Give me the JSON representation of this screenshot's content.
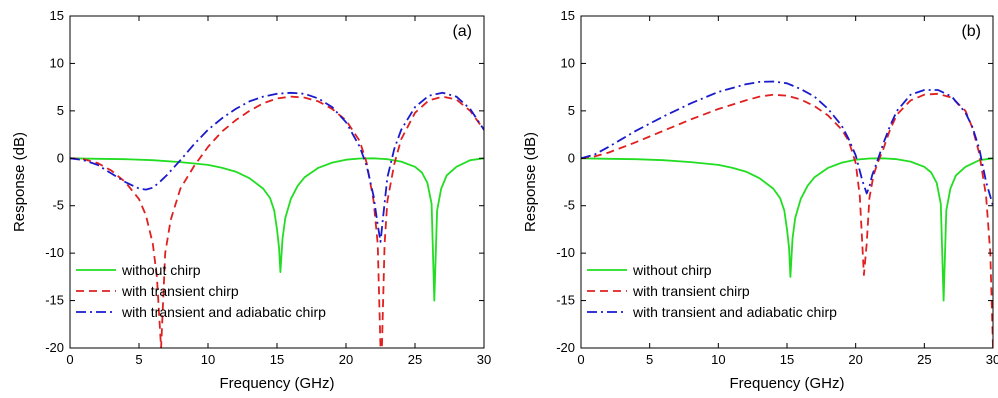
{
  "chart_data": [
    {
      "type": "line",
      "panel_label": "(a)",
      "xlabel": "Frequency (GHz)",
      "ylabel": "Response (dB)",
      "xlim": [
        0,
        30
      ],
      "ylim": [
        -20,
        15
      ],
      "xticks": [
        0,
        5,
        10,
        15,
        20,
        25,
        30
      ],
      "yticks": [
        -20,
        -15,
        -10,
        -5,
        0,
        5,
        10,
        15
      ],
      "grid": false,
      "legend_position": "bottom-left",
      "series": [
        {
          "name": "without chirp",
          "color": "#22dd22",
          "dash": "solid",
          "x": [
            0,
            2,
            4,
            6,
            8,
            10,
            11,
            12,
            13,
            14,
            14.5,
            14.8,
            15.0,
            15.15,
            15.25,
            15.4,
            15.6,
            16,
            16.5,
            17,
            18,
            19,
            20,
            21,
            22,
            23,
            24,
            25,
            25.5,
            25.9,
            26.2,
            26.4,
            26.6,
            26.9,
            27.3,
            28,
            29,
            30
          ],
          "y": [
            0,
            -0.05,
            -0.1,
            -0.2,
            -0.4,
            -0.7,
            -1.0,
            -1.4,
            -2.1,
            -3.2,
            -4.2,
            -5.5,
            -7.5,
            -9.5,
            -12,
            -8.5,
            -6.3,
            -4.3,
            -2.9,
            -2.0,
            -1.0,
            -0.45,
            -0.15,
            -0.02,
            0,
            -0.1,
            -0.35,
            -0.9,
            -1.5,
            -2.6,
            -4.8,
            -15,
            -5.5,
            -3.2,
            -1.8,
            -0.9,
            -0.2,
            0
          ]
        },
        {
          "name": "with transient chirp",
          "color": "#e02020",
          "dash": "dashed",
          "x": [
            0,
            1,
            2,
            3,
            4,
            5,
            5.5,
            6.0,
            6.3,
            6.6,
            6.9,
            7.3,
            8,
            9,
            10,
            11,
            12,
            13,
            14,
            15,
            16,
            17,
            18,
            19,
            20,
            21,
            21.5,
            22.0,
            22.3,
            22.5,
            22.6,
            22.8,
            23,
            23.5,
            24,
            25,
            26,
            27,
            28,
            29,
            29.5,
            30
          ],
          "y": [
            0,
            -0.1,
            -0.5,
            -1.3,
            -2.5,
            -4.3,
            -6.0,
            -9.0,
            -12.5,
            -20,
            -10,
            -6.5,
            -3.2,
            -0.8,
            1.2,
            2.8,
            4.0,
            5.0,
            5.8,
            6.3,
            6.5,
            6.4,
            6.0,
            5.2,
            4.0,
            1.8,
            -0.5,
            -4.5,
            -9.0,
            -20,
            -20,
            -9,
            -4.5,
            -0.6,
            2.0,
            4.8,
            6.1,
            6.5,
            6.2,
            5.0,
            4.0,
            3.0
          ]
        },
        {
          "name": "with transient and adiabatic chirp",
          "color": "#1a1acc",
          "dash": "dashdot",
          "x": [
            0,
            1,
            2,
            3,
            4,
            5,
            5.5,
            6,
            6.5,
            7,
            8,
            9,
            10,
            11,
            12,
            13,
            14,
            15,
            16,
            17,
            18,
            19,
            20,
            21,
            21.5,
            22,
            22.3,
            22.5,
            22.7,
            23,
            23.5,
            24,
            25,
            26,
            27,
            28,
            29,
            30
          ],
          "y": [
            0,
            -0.2,
            -0.7,
            -1.6,
            -2.5,
            -3.2,
            -3.3,
            -3.1,
            -2.5,
            -1.8,
            -0.2,
            1.5,
            3.0,
            4.2,
            5.2,
            6.0,
            6.5,
            6.8,
            6.9,
            6.8,
            6.3,
            5.4,
            3.8,
            1.2,
            -0.8,
            -4.0,
            -7.0,
            -8.8,
            -6.0,
            -2.0,
            1.0,
            3.0,
            5.4,
            6.6,
            6.9,
            6.5,
            5.2,
            3.0
          ]
        }
      ]
    },
    {
      "type": "line",
      "panel_label": "(b)",
      "xlabel": "Frequency (GHz)",
      "ylabel": "Response (dB)",
      "xlim": [
        0,
        30
      ],
      "ylim": [
        -20,
        15
      ],
      "xticks": [
        0,
        5,
        10,
        15,
        20,
        25,
        30
      ],
      "yticks": [
        -20,
        -15,
        -10,
        -5,
        0,
        5,
        10,
        15
      ],
      "grid": false,
      "legend_position": "bottom-left",
      "series": [
        {
          "name": "without chirp",
          "color": "#22dd22",
          "dash": "solid",
          "x": [
            0,
            2,
            4,
            6,
            8,
            10,
            11,
            12,
            13,
            14,
            14.5,
            14.8,
            15.0,
            15.15,
            15.25,
            15.4,
            15.6,
            16,
            16.5,
            17,
            18,
            19,
            20,
            21,
            22,
            23,
            24,
            25,
            25.5,
            25.9,
            26.2,
            26.4,
            26.6,
            26.9,
            27.3,
            28,
            29,
            30
          ],
          "y": [
            0,
            -0.05,
            -0.1,
            -0.2,
            -0.4,
            -0.7,
            -1.0,
            -1.4,
            -2.1,
            -3.2,
            -4.2,
            -5.5,
            -7.5,
            -9.5,
            -12.5,
            -8.5,
            -6.3,
            -4.3,
            -2.9,
            -2.0,
            -1.0,
            -0.45,
            -0.15,
            -0.02,
            0,
            -0.1,
            -0.35,
            -0.9,
            -1.5,
            -2.6,
            -4.8,
            -15,
            -5.5,
            -3.2,
            -1.8,
            -0.9,
            -0.2,
            0
          ]
        },
        {
          "name": "with transient chirp",
          "color": "#e02020",
          "dash": "dashed",
          "x": [
            0,
            1,
            2,
            4,
            6,
            8,
            10,
            12,
            13,
            14,
            15,
            16,
            17,
            18,
            19,
            19.5,
            20,
            20.3,
            20.6,
            20.8,
            21.0,
            21.3,
            21.6,
            22,
            22.5,
            23,
            24,
            25,
            26,
            27,
            28,
            28.5,
            29,
            29.5,
            29.8,
            30
          ],
          "y": [
            0,
            0.2,
            0.6,
            1.7,
            2.9,
            4.1,
            5.2,
            6.1,
            6.5,
            6.7,
            6.6,
            6.2,
            5.5,
            4.5,
            3.0,
            1.8,
            -0.5,
            -4.0,
            -12.3,
            -9,
            -4.2,
            -1.8,
            -0.5,
            0.9,
            3.0,
            4.6,
            6.1,
            6.7,
            6.8,
            6.4,
            5.0,
            3.2,
            0.5,
            -4.0,
            -10.0,
            -20
          ]
        },
        {
          "name": "with transient and adiabatic chirp",
          "color": "#1a1acc",
          "dash": "dashdot",
          "x": [
            0,
            1,
            2,
            4,
            6,
            8,
            10,
            12,
            13,
            14,
            15,
            16,
            17,
            18,
            19,
            19.5,
            20,
            20.5,
            20.8,
            21.0,
            21.2,
            21.5,
            22,
            22.5,
            23,
            24,
            25,
            26,
            27,
            28,
            28.5,
            29,
            29.5,
            30
          ],
          "y": [
            0,
            0.4,
            1.2,
            2.9,
            4.4,
            5.8,
            7.0,
            7.8,
            8.05,
            8.1,
            7.9,
            7.3,
            6.5,
            5.2,
            3.4,
            2.0,
            0.3,
            -2.4,
            -3.7,
            -3.0,
            -1.8,
            -0.6,
            1.5,
            3.4,
            5.0,
            6.7,
            7.2,
            7.2,
            6.5,
            4.8,
            3.3,
            1.0,
            -2.5,
            -5.0
          ]
        }
      ]
    }
  ]
}
